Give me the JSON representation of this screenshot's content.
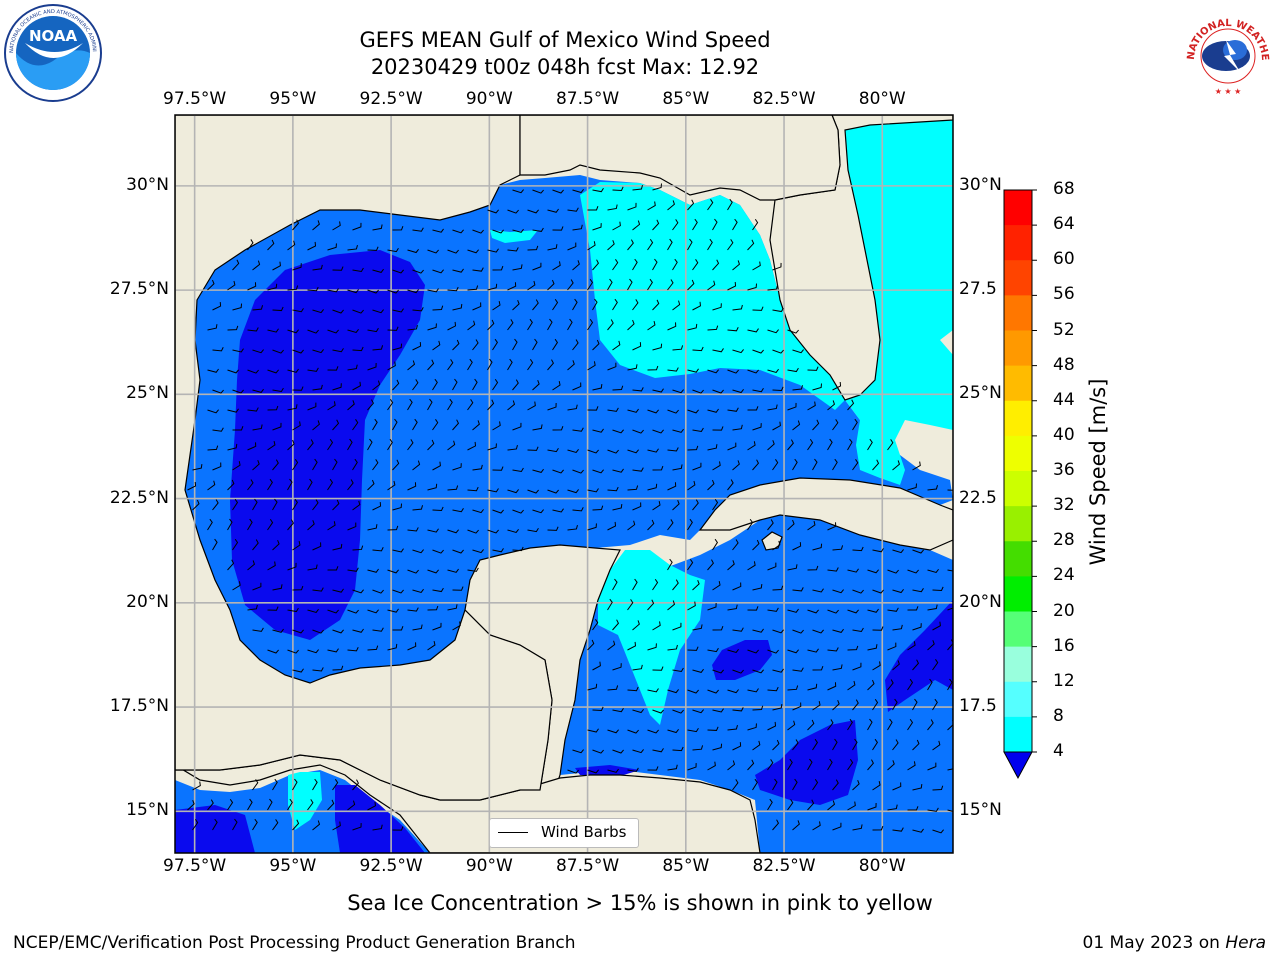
{
  "header": {
    "title_line1": "GEFS MEAN Gulf of Mexico Wind Speed",
    "title_line2": "20230429 t00z 048h fcst   Max: 12.92"
  },
  "logos": {
    "left": {
      "name": "noaa-logo",
      "text": "NOAA",
      "ring_text": "NATIONAL OCEANIC AND ATMOSPHERIC ADMINISTRATION · U.S. DEPARTMENT OF COMMERCE"
    },
    "right": {
      "name": "nws-logo",
      "ring_text": "NATIONAL WEATHER SERVICE"
    }
  },
  "map": {
    "lon_labels": [
      "97.5°W",
      "95°W",
      "92.5°W",
      "90°W",
      "87.5°W",
      "85°W",
      "82.5°W",
      "80°W"
    ],
    "lon_values": [
      -97.5,
      -95,
      -92.5,
      -90,
      -87.5,
      -85,
      -82.5,
      -80
    ],
    "lat_left_labels": [
      "30°N",
      "27.5°N",
      "25°N",
      "22.5°N",
      "20°N",
      "17.5°N",
      "15°N"
    ],
    "lat_right_labels": [
      "30°N",
      "27.5",
      "25°N",
      "22.5",
      "20°N",
      "17.5",
      "15°N"
    ],
    "lat_values": [
      30,
      27.5,
      25,
      22.5,
      20,
      17.5,
      15
    ],
    "extent": {
      "lon_min": -98.0,
      "lon_max": -78.2,
      "lat_min": 14.0,
      "lat_max": 31.7
    },
    "legend_label": "Wind Barbs",
    "land_color": "#efecdc",
    "grid_color": "#b4b4b4"
  },
  "colorbar": {
    "label": "Wind Speed [m/s]",
    "levels": [
      4,
      8,
      12,
      16,
      20,
      24,
      28,
      32,
      36,
      40,
      44,
      48,
      52,
      56,
      60,
      64,
      68
    ],
    "tick_labels": [
      "4",
      "8",
      "12",
      "16",
      "20",
      "24",
      "28",
      "32",
      "36",
      "40",
      "44",
      "48",
      "52",
      "56",
      "60",
      "64",
      "68"
    ],
    "colors": [
      "#0a74ff",
      "#00ffff",
      "#33ffff",
      "#66ffff",
      "#99ffe6",
      "#55f080",
      "#22dd22",
      "#00dd00",
      "#55e000",
      "#99e600",
      "#ccee00",
      "#eeee00",
      "#ffee00",
      "#ffcc00",
      "#ffaa00",
      "#ff8800",
      "#ff6600",
      "#ff4400",
      "#ff2200",
      "#ff0000"
    ],
    "under_color": "#0000ee"
  },
  "fill_colors": {
    "dark": "#0a0aee",
    "mid": "#0a74ff",
    "light": "#00ffff"
  },
  "note": "Sea Ice Concentration > 15% is shown in pink to yellow",
  "footer": {
    "left": "NCEP/EMC/Verification Post Processing Product Generation Branch",
    "right_prefix": "01 May 2023 on",
    "right_machine": "Hera"
  }
}
